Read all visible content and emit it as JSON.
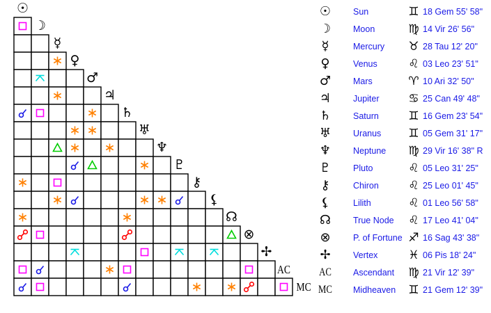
{
  "planets": [
    {
      "name": "Sun",
      "glyph": "☉",
      "sign_glyph": "♊",
      "position": "18 Gem 55' 58\""
    },
    {
      "name": "Moon",
      "glyph": "☽",
      "sign_glyph": "♍",
      "position": "14 Vir 26' 56\""
    },
    {
      "name": "Mercury",
      "glyph": "☿",
      "sign_glyph": "♉",
      "position": "28 Tau 12' 20\""
    },
    {
      "name": "Venus",
      "glyph": "♀",
      "sign_glyph": "♌",
      "position": "03 Leo 23' 51\""
    },
    {
      "name": "Mars",
      "glyph": "♂",
      "sign_glyph": "♈",
      "position": "10 Ari 32' 50\""
    },
    {
      "name": "Jupiter",
      "glyph": "♃",
      "sign_glyph": "♋",
      "position": "25 Can 49' 48\""
    },
    {
      "name": "Saturn",
      "glyph": "♄",
      "sign_glyph": "♊",
      "position": "16 Gem 23' 54\""
    },
    {
      "name": "Uranus",
      "glyph": "♅",
      "sign_glyph": "♊",
      "position": "05 Gem 31' 17\""
    },
    {
      "name": "Neptune",
      "glyph": "♆",
      "sign_glyph": "♍",
      "position": "29 Vir 16' 38\" R"
    },
    {
      "name": "Pluto",
      "glyph": "♇",
      "sign_glyph": "♌",
      "position": "05 Leo 31' 25\""
    },
    {
      "name": "Chiron",
      "glyph": "⚷",
      "sign_glyph": "♌",
      "position": "25 Leo 01' 45\""
    },
    {
      "name": "Lilith",
      "glyph": "⚸",
      "sign_glyph": "♌",
      "position": "01 Leo 56' 58\""
    },
    {
      "name": "True Node",
      "glyph": "☊",
      "sign_glyph": "♌",
      "position": "17 Leo 41' 04\""
    },
    {
      "name": "P. of Fortune",
      "glyph": "⊗",
      "sign_glyph": "♐",
      "position": "16 Sag 43' 38\""
    },
    {
      "name": "Vertex",
      "glyph": "✢",
      "sign_glyph": "♓",
      "position": "06 Pis 18' 24\""
    },
    {
      "name": "Ascendant",
      "glyph": "AC",
      "sign_glyph": "♍",
      "position": "21 Vir 12' 39\""
    },
    {
      "name": "Midheaven",
      "glyph": "MC",
      "sign_glyph": "♊",
      "position": "21 Gem 12' 39\""
    }
  ],
  "aspect_colors": {
    "square": "#ff00ff",
    "sextile": "#ff8000",
    "trine": "#00cc00",
    "conjunction": "#1a1ae6",
    "opposition": "#ff0000",
    "quincunx": "#00dddd"
  },
  "aspects": [
    {
      "a": "Moon",
      "b": "Sun",
      "type": "square"
    },
    {
      "a": "Venus",
      "b": "Mercury",
      "type": "sextile"
    },
    {
      "a": "Mars",
      "b": "Moon",
      "type": "quincunx"
    },
    {
      "a": "Jupiter",
      "b": "Mercury",
      "type": "sextile"
    },
    {
      "a": "Saturn",
      "b": "Sun",
      "type": "conjunction"
    },
    {
      "a": "Saturn",
      "b": "Moon",
      "type": "square"
    },
    {
      "a": "Saturn",
      "b": "Mars",
      "type": "sextile"
    },
    {
      "a": "Uranus",
      "b": "Venus",
      "type": "sextile"
    },
    {
      "a": "Uranus",
      "b": "Mars",
      "type": "sextile"
    },
    {
      "a": "Neptune",
      "b": "Mercury",
      "type": "trine"
    },
    {
      "a": "Neptune",
      "b": "Venus",
      "type": "sextile"
    },
    {
      "a": "Neptune",
      "b": "Jupiter",
      "type": "sextile"
    },
    {
      "a": "Pluto",
      "b": "Venus",
      "type": "conjunction"
    },
    {
      "a": "Pluto",
      "b": "Mars",
      "type": "trine"
    },
    {
      "a": "Pluto",
      "b": "Uranus",
      "type": "sextile"
    },
    {
      "a": "Chiron",
      "b": "Sun",
      "type": "sextile"
    },
    {
      "a": "Chiron",
      "b": "Mercury",
      "type": "square"
    },
    {
      "a": "Lilith",
      "b": "Mercury",
      "type": "sextile"
    },
    {
      "a": "Lilith",
      "b": "Venus",
      "type": "conjunction"
    },
    {
      "a": "Lilith",
      "b": "Uranus",
      "type": "sextile"
    },
    {
      "a": "Lilith",
      "b": "Neptune",
      "type": "sextile"
    },
    {
      "a": "Lilith",
      "b": "Pluto",
      "type": "conjunction"
    },
    {
      "a": "True Node",
      "b": "Sun",
      "type": "sextile"
    },
    {
      "a": "True Node",
      "b": "Saturn",
      "type": "sextile"
    },
    {
      "a": "P. of Fortune",
      "b": "Sun",
      "type": "opposition"
    },
    {
      "a": "P. of Fortune",
      "b": "Moon",
      "type": "square"
    },
    {
      "a": "P. of Fortune",
      "b": "Saturn",
      "type": "opposition"
    },
    {
      "a": "P. of Fortune",
      "b": "True Node",
      "type": "trine"
    },
    {
      "a": "Vertex",
      "b": "Venus",
      "type": "quincunx"
    },
    {
      "a": "Vertex",
      "b": "Uranus",
      "type": "square"
    },
    {
      "a": "Vertex",
      "b": "Pluto",
      "type": "quincunx"
    },
    {
      "a": "Vertex",
      "b": "Lilith",
      "type": "quincunx"
    },
    {
      "a": "Ascendant",
      "b": "Sun",
      "type": "square"
    },
    {
      "a": "Ascendant",
      "b": "Moon",
      "type": "conjunction"
    },
    {
      "a": "Ascendant",
      "b": "Jupiter",
      "type": "sextile"
    },
    {
      "a": "Ascendant",
      "b": "Saturn",
      "type": "square"
    },
    {
      "a": "Ascendant",
      "b": "P. of Fortune",
      "type": "square"
    },
    {
      "a": "Midheaven",
      "b": "Sun",
      "type": "conjunction"
    },
    {
      "a": "Midheaven",
      "b": "Moon",
      "type": "square"
    },
    {
      "a": "Midheaven",
      "b": "Saturn",
      "type": "conjunction"
    },
    {
      "a": "Midheaven",
      "b": "Chiron",
      "type": "sextile"
    },
    {
      "a": "Midheaven",
      "b": "True Node",
      "type": "sextile"
    },
    {
      "a": "Midheaven",
      "b": "P. of Fortune",
      "type": "opposition"
    },
    {
      "a": "Midheaven",
      "b": "Ascendant",
      "type": "square"
    }
  ]
}
